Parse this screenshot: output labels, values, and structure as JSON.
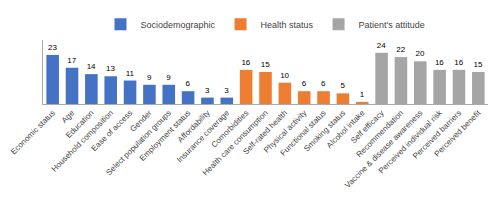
{
  "chart_data": {
    "type": "bar",
    "categories": [
      "Economic status",
      "Age",
      "Education",
      "Household composition",
      "Ease of access",
      "Gender",
      "Select population groups",
      "Employment status",
      "Affordability",
      "Insurance coverage",
      "Comorbidities",
      "Health care consumption",
      "Self-rated health",
      "Physical activity",
      "Functional status",
      "Smoking status",
      "Alcohol intake",
      "Self efficacy",
      "Recommendation",
      "Vaccine & disease awareness",
      "Perceived individual risk",
      "Perceived barriers",
      "Perceived benefit"
    ],
    "series": [
      {
        "name": "Sociodemographic",
        "color": "#4472C4",
        "values": [
          23,
          17,
          14,
          13,
          11,
          9,
          9,
          6,
          3,
          3,
          null,
          null,
          null,
          null,
          null,
          null,
          null,
          null,
          null,
          null,
          null,
          null,
          null
        ]
      },
      {
        "name": "Health status",
        "color": "#ED7D31",
        "values": [
          null,
          null,
          null,
          null,
          null,
          null,
          null,
          null,
          null,
          null,
          16,
          15,
          10,
          6,
          6,
          5,
          1,
          null,
          null,
          null,
          null,
          null,
          null
        ]
      },
      {
        "name": "Patient's attitude",
        "color": "#A5A5A5",
        "values": [
          null,
          null,
          null,
          null,
          null,
          null,
          null,
          null,
          null,
          null,
          null,
          null,
          null,
          null,
          null,
          null,
          null,
          24,
          22,
          20,
          16,
          16,
          15
        ]
      }
    ],
    "ylim": [
      0,
      30
    ],
    "grid": false,
    "data_labels": true,
    "tick_labels": "x",
    "legend": "top"
  }
}
